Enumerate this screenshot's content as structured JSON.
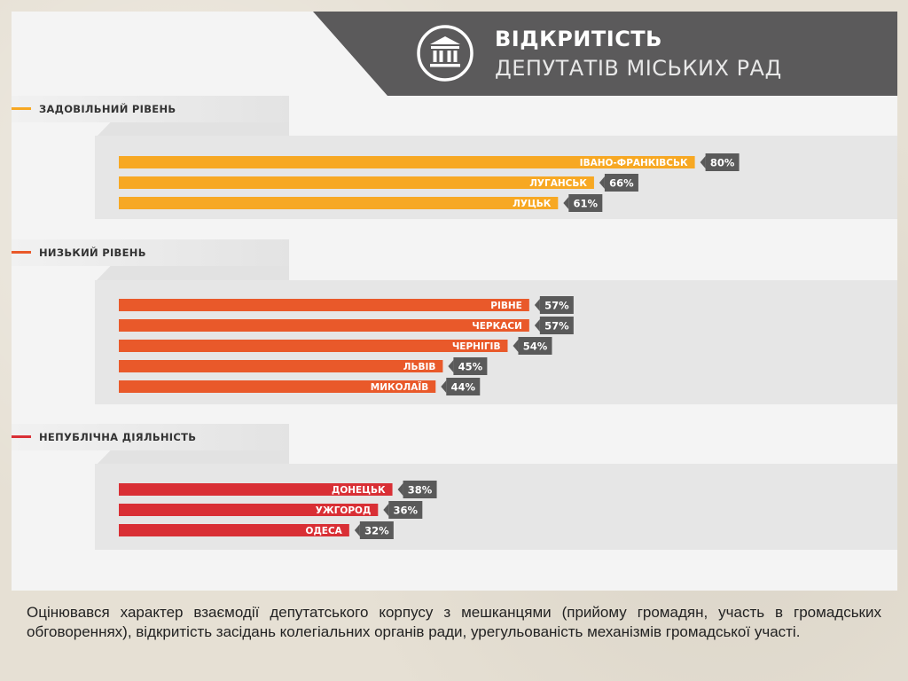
{
  "header": {
    "title_line1": "ВІДКРИТІСТЬ",
    "title_line2": "ДЕПУТАТІВ МІСЬКИХ РАД",
    "logo_icon": "institution-building-icon"
  },
  "colors": {
    "header_bg": "#5b5a5b",
    "satisfactory": "#f7a823",
    "low": "#e9592a",
    "non_public": "#d92f35",
    "value_tag": "#5a5a5a"
  },
  "caption": "Оцінювався характер взаємодії депутатського корпусу з мешканцями (прийому громадян, участь в громадських обговореннях), відкритість засідань колегіальних органів ради, урегульованість механізмів громадської участі.",
  "chart_data": {
    "type": "bar",
    "orientation": "horizontal",
    "unit": "%",
    "groups": [
      {
        "name": "ЗАДОВІЛЬНИЙ РІВЕНЬ",
        "color": "#f7a823",
        "categories": [
          "ІВАНО-ФРАНКІВСЬК",
          "ЛУГАНСЬК",
          "ЛУЦЬК"
        ],
        "values": [
          80,
          66,
          61
        ],
        "labels": [
          "80%",
          "66%",
          "61%"
        ]
      },
      {
        "name": "НИЗЬКИЙ РІВЕНЬ",
        "color": "#e9592a",
        "categories": [
          "РІВНЕ",
          "ЧЕРКАСИ",
          "ЧЕРНІГІВ",
          "ЛЬВІВ",
          "МИКОЛАЇВ"
        ],
        "values": [
          57,
          57,
          54,
          45,
          44
        ],
        "labels": [
          "57%",
          "57%",
          "54%",
          "45%",
          "44%"
        ]
      },
      {
        "name": "НЕПУБЛІЧНА ДІЯЛЬНІСТЬ",
        "color": "#d92f35",
        "categories": [
          "ДОНЕЦЬК",
          "УЖГОРОД",
          "ОДЕСА"
        ],
        "values": [
          38,
          36,
          32
        ],
        "labels": [
          "38%",
          "36%",
          "32%"
        ]
      }
    ]
  }
}
